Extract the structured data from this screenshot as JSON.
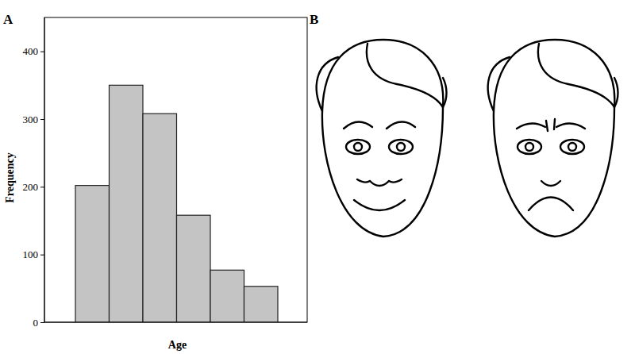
{
  "chart_data": {
    "type": "histogram",
    "categories": [
      null,
      null,
      null,
      null,
      null,
      null
    ],
    "values": [
      202,
      350,
      308,
      158,
      77,
      53
    ],
    "x_label": "Age",
    "y_label": "Frequency",
    "ylim": [
      0,
      450
    ],
    "yticks": [
      0,
      100,
      200,
      300,
      400
    ],
    "color": "#c4c4c4",
    "tick_labels": "y"
  },
  "panel_labels": [
    "A",
    "B"
  ]
}
